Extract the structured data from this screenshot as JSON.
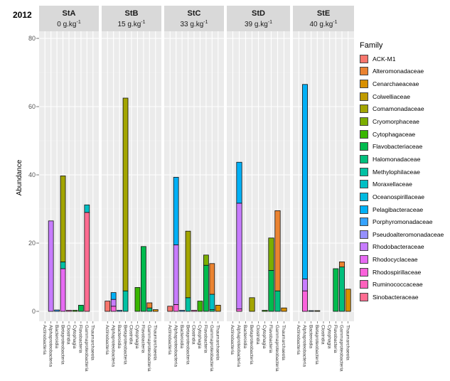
{
  "chart_data": {
    "type": "bar",
    "year": "2012",
    "ylabel": "Abundance",
    "ylim": [
      0,
      80
    ],
    "yticks": [
      0,
      20,
      40,
      60,
      80
    ],
    "grid": true,
    "legend_position": "right",
    "legend_title": "Family",
    "families": [
      {
        "name": "ACK-M1",
        "color": "#f8766d"
      },
      {
        "name": "Alteromonadaceae",
        "color": "#ea8331"
      },
      {
        "name": "Cenarchaeaceae",
        "color": "#d89000"
      },
      {
        "name": "Colwelliaceae",
        "color": "#c09b00"
      },
      {
        "name": "Comamonadaceae",
        "color": "#a3a500"
      },
      {
        "name": "Cryomorphaceae",
        "color": "#7cae00"
      },
      {
        "name": "Cytophagaceae",
        "color": "#39b600"
      },
      {
        "name": "Flavobacteriaceae",
        "color": "#00bb4e"
      },
      {
        "name": "Halomonadaceae",
        "color": "#00bf7d"
      },
      {
        "name": "Methylophilaceae",
        "color": "#00c1a3"
      },
      {
        "name": "Moraxellaceae",
        "color": "#00bfc4"
      },
      {
        "name": "Oceanospirillaceae",
        "color": "#00bae0"
      },
      {
        "name": "Pelagibacteraceae",
        "color": "#00b0f6"
      },
      {
        "name": "Porphyromonadaceae",
        "color": "#35a2ff"
      },
      {
        "name": "Pseudoalteromonadaceae",
        "color": "#9590ff"
      },
      {
        "name": "Rhodobacteraceae",
        "color": "#c77cff"
      },
      {
        "name": "Rhodocyclaceae",
        "color": "#e76bf3"
      },
      {
        "name": "Rhodospirillaceae",
        "color": "#fa62db"
      },
      {
        "name": "Ruminococcaceae",
        "color": "#ff62bc"
      },
      {
        "name": "Sinobacteraceae",
        "color": "#ff6c91"
      }
    ],
    "panels": [
      {
        "station": "StA",
        "carbon": "0 g.kg",
        "exponent": "-1",
        "categories": [
          "Actinobacteria",
          "Alphaproteobacteria",
          "Bacteroidia",
          "Betaproteobacteria",
          "Clostridia",
          "Cytophagia",
          "Flavobacteria",
          "Gammaproteobacteria",
          "Thaumarchaeota"
        ],
        "bars": [
          [],
          [
            {
              "family": "Rhodobacteraceae",
              "value": 26.5
            }
          ],
          [
            {
              "family": "Porphyromonadaceae",
              "value": 0.4
            }
          ],
          [
            {
              "family": "Rhodocyclaceae",
              "value": 12.5
            },
            {
              "family": "Methylophilaceae",
              "value": 2
            },
            {
              "family": "Comamonadaceae",
              "value": 25.2
            }
          ],
          [
            {
              "family": "Ruminococcaceae",
              "value": 0.3
            }
          ],
          [
            {
              "family": "Cytophagaceae",
              "value": 0.3
            }
          ],
          [
            {
              "family": "Flavobacteriaceae",
              "value": 1.8
            }
          ],
          [
            {
              "family": "Sinobacteraceae",
              "value": 29
            },
            {
              "family": "Moraxellaceae",
              "value": 2.2
            }
          ],
          []
        ]
      },
      {
        "station": "StB",
        "carbon": "15 g.kg",
        "exponent": "-1",
        "categories": [
          "Actinobacteria",
          "Alphaproteobacteria",
          "Bacteroidia",
          "Betaproteobacteria",
          "Clostridia",
          "Cytophagia",
          "Flavobacteria",
          "Gammaproteobacteria",
          "Thaumarchaeota"
        ],
        "bars": [
          [
            {
              "family": "ACK-M1",
              "value": 3
            }
          ],
          [
            {
              "family": "Rhodospirillaceae",
              "value": 1.5
            },
            {
              "family": "Rhodobacteraceae",
              "value": 2
            },
            {
              "family": "Pelagibacteraceae",
              "value": 2
            }
          ],
          [
            {
              "family": "Porphyromonadaceae",
              "value": 0.3
            }
          ],
          [
            {
              "family": "Methylophilaceae",
              "value": 6
            },
            {
              "family": "Comamonadaceae",
              "value": 56.5
            }
          ],
          [],
          [
            {
              "family": "Cytophagaceae",
              "value": 7
            }
          ],
          [
            {
              "family": "Flavobacteriaceae",
              "value": 19
            }
          ],
          [
            {
              "family": "Halomonadaceae",
              "value": 1
            },
            {
              "family": "Alteromonadaceae",
              "value": 1.5
            }
          ],
          [
            {
              "family": "Cenarchaeaceae",
              "value": 0.5
            }
          ]
        ]
      },
      {
        "station": "StC",
        "carbon": "33 g.kg",
        "exponent": "-1",
        "categories": [
          "Actinobacteria",
          "Alphaproteobacteria",
          "Bacteroidia",
          "Betaproteobacteria",
          "Clostridia",
          "Cytophagia",
          "Flavobacteria",
          "Gammaproteobacteria",
          "Thaumarchaeota"
        ],
        "bars": [
          [
            {
              "family": "ACK-M1",
              "value": 1.5
            }
          ],
          [
            {
              "family": "Rhodospirillaceae",
              "value": 2
            },
            {
              "family": "Rhodobacteraceae",
              "value": 17.5
            },
            {
              "family": "Pelagibacteraceae",
              "value": 19.8
            }
          ],
          [
            {
              "family": "Porphyromonadaceae",
              "value": 0.3
            }
          ],
          [
            {
              "family": "Methylophilaceae",
              "value": 4
            },
            {
              "family": "Comamonadaceae",
              "value": 19.5
            }
          ],
          [
            {
              "family": "Ruminococcaceae",
              "value": 0.3
            }
          ],
          [
            {
              "family": "Cytophagaceae",
              "value": 3
            }
          ],
          [
            {
              "family": "Flavobacteriaceae",
              "value": 13.5
            },
            {
              "family": "Cryomorphaceae",
              "value": 3
            }
          ],
          [
            {
              "family": "Halomonadaceae",
              "value": 0.5
            },
            {
              "family": "Moraxellaceae",
              "value": 4.5
            },
            {
              "family": "Alteromonadaceae",
              "value": 9
            }
          ],
          [
            {
              "family": "Cenarchaeaceae",
              "value": 1.8
            }
          ]
        ]
      },
      {
        "station": "StD",
        "carbon": "39 g.kg",
        "exponent": "-1",
        "categories": [
          "Actinobacteria",
          "Alphaproteobacteria",
          "Bacteroidia",
          "Betaproteobacteria",
          "Clostridia",
          "Cytophagia",
          "Flavobacteria",
          "Gammaproteobacteria",
          "Thaumarchaeota"
        ],
        "bars": [
          [],
          [
            {
              "family": "Rhodospirillaceae",
              "value": 0.7
            },
            {
              "family": "Rhodobacteraceae",
              "value": 31
            },
            {
              "family": "Pelagibacteraceae",
              "value": 12
            }
          ],
          [],
          [
            {
              "family": "Comamonadaceae",
              "value": 4
            }
          ],
          [],
          [
            {
              "family": "Cytophagaceae",
              "value": 0.3
            }
          ],
          [
            {
              "family": "Flavobacteriaceae",
              "value": 12
            },
            {
              "family": "Cryomorphaceae",
              "value": 9.5
            }
          ],
          [
            {
              "family": "Halomonadaceae",
              "value": 6
            },
            {
              "family": "Alteromonadaceae",
              "value": 23.5
            }
          ],
          [
            {
              "family": "Cenarchaeaceae",
              "value": 1
            }
          ]
        ]
      },
      {
        "station": "StE",
        "carbon": "40 g.kg",
        "exponent": "-1",
        "categories": [
          "Actinobacteria",
          "Alphaproteobacteria",
          "Bacteroidia",
          "Betaproteobacteria",
          "Clostridia",
          "Cytophagia",
          "Flavobacteria",
          "Gammaproteobacteria",
          "Thaumarchaeota"
        ],
        "bars": [
          [],
          [
            {
              "family": "Rhodospirillaceae",
              "value": 6
            },
            {
              "family": "Rhodobacteraceae",
              "value": 3.5
            },
            {
              "family": "Pelagibacteraceae",
              "value": 57
            }
          ],
          [
            {
              "family": "Porphyromonadaceae",
              "value": 0.2
            }
          ],
          [
            {
              "family": "Comamonadaceae",
              "value": 0.2
            }
          ],
          [],
          [],
          [
            {
              "family": "Flavobacteriaceae",
              "value": 12.5
            }
          ],
          [
            {
              "family": "Halomonadaceae",
              "value": 13
            },
            {
              "family": "Alteromonadaceae",
              "value": 1.5
            }
          ],
          [
            {
              "family": "Cenarchaeaceae",
              "value": 6.5
            }
          ]
        ]
      }
    ]
  }
}
